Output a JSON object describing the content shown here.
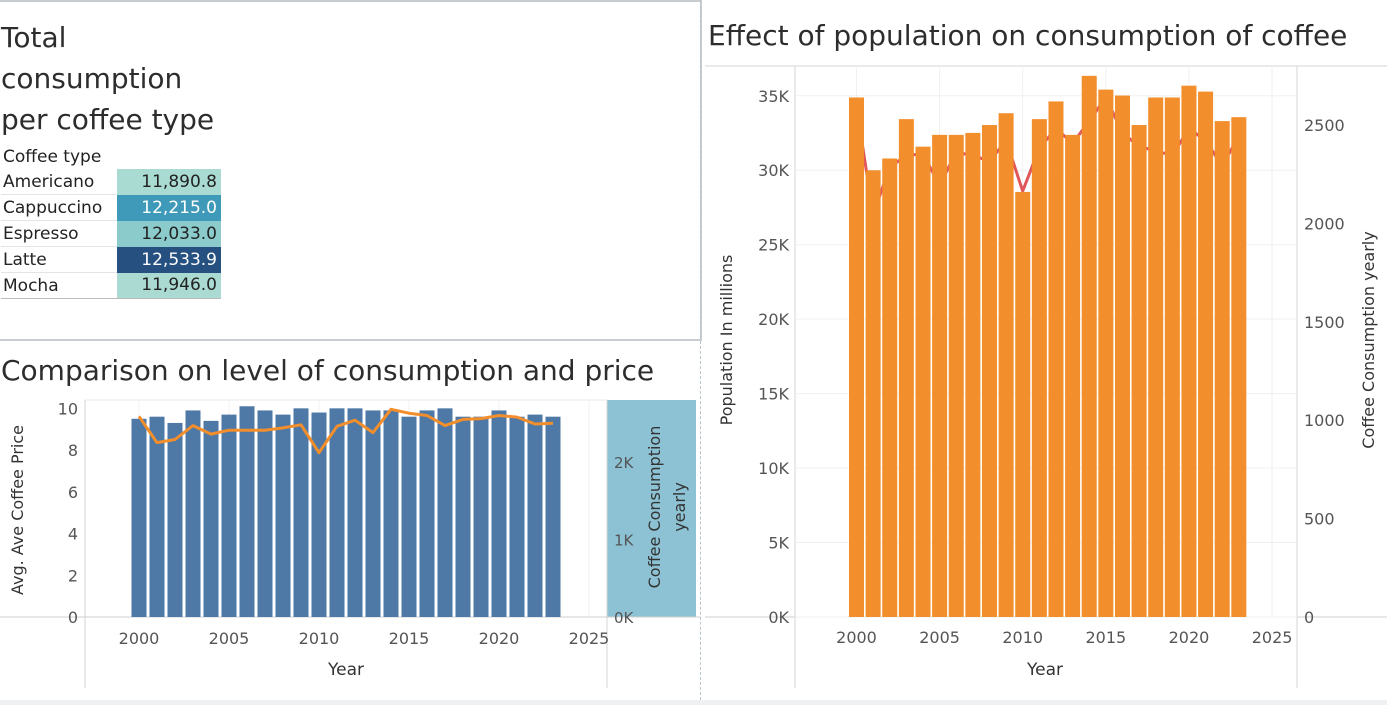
{
  "panel1": {
    "title_lines": [
      "Total",
      "consumption",
      "per coffee type"
    ],
    "header": "Coffee type",
    "rows": [
      {
        "label": "Americano",
        "value": "11,890.8",
        "color": "#a9dbd3",
        "text_color": "#222"
      },
      {
        "label": "Cappuccino",
        "value": "12,215.0",
        "color": "#3e9ab8",
        "text_color": "#ffffff"
      },
      {
        "label": "Espresso",
        "value": "12,033.0",
        "color": "#8ccbcc",
        "text_color": "#222"
      },
      {
        "label": "Latte",
        "value": "12,533.9",
        "color": "#26507f",
        "text_color": "#ffffff"
      },
      {
        "label": "Mocha",
        "value": "11,946.0",
        "color": "#aadad2",
        "text_color": "#222"
      }
    ]
  },
  "panel2": {
    "title": "Comparison on level of consumption and price"
  },
  "panel3": {
    "title": "Effect of population on consumption of coffee"
  },
  "chart_data": [
    {
      "type": "bar",
      "title": "Comparison on level of consumption and price",
      "xlabel": "Year",
      "ylabel": "Avg. Ave Coffee  Price",
      "y2label": [
        "Coffee  Consumption",
        "yearly"
      ],
      "x": [
        2000,
        2001,
        2002,
        2003,
        2004,
        2005,
        2006,
        2007,
        2008,
        2009,
        2010,
        2011,
        2012,
        2013,
        2014,
        2015,
        2016,
        2017,
        2018,
        2019,
        2020,
        2021,
        2022,
        2023
      ],
      "x_ticks": [
        2000,
        2005,
        2010,
        2015,
        2020,
        2025
      ],
      "xlim": [
        1997,
        2026
      ],
      "y_ticks": [
        0,
        2,
        4,
        6,
        8,
        10
      ],
      "ylim": [
        0,
        10.4
      ],
      "y2_ticks": [
        {
          "v": 0,
          "label": "0K"
        },
        {
          "v": 1000,
          "label": "1K"
        },
        {
          "v": 2000,
          "label": "2K"
        }
      ],
      "y2lim": [
        0,
        2800
      ],
      "series": [
        {
          "name": "Avg. Ave Coffee  Price",
          "kind": "bar",
          "color": "#4e79a7",
          "values": [
            9.5,
            9.6,
            9.3,
            9.9,
            9.4,
            9.7,
            10.1,
            9.9,
            9.7,
            10.0,
            9.8,
            10.0,
            10.0,
            9.9,
            9.9,
            9.6,
            9.9,
            10.0,
            9.6,
            9.6,
            9.9,
            9.6,
            9.7,
            9.6
          ]
        },
        {
          "name": "Coffee  Consumption yearly",
          "kind": "line",
          "color": "#f28e2b",
          "values": [
            2590,
            2250,
            2290,
            2470,
            2360,
            2410,
            2410,
            2410,
            2440,
            2480,
            2120,
            2460,
            2540,
            2380,
            2680,
            2630,
            2600,
            2470,
            2550,
            2560,
            2600,
            2580,
            2490,
            2500
          ]
        }
      ]
    },
    {
      "type": "bar",
      "title": "Effect of population on consumption of coffee",
      "xlabel": "Year",
      "ylabel": "Population In millions",
      "y2label": "Coffee  Consumption yearly",
      "x": [
        2000,
        2001,
        2002,
        2003,
        2004,
        2005,
        2006,
        2007,
        2008,
        2009,
        2010,
        2011,
        2012,
        2013,
        2014,
        2015,
        2016,
        2017,
        2018,
        2019,
        2020,
        2021,
        2022,
        2023
      ],
      "x_ticks": [
        2000,
        2005,
        2010,
        2015,
        2020,
        2025
      ],
      "xlim": [
        1996.3,
        2026.5
      ],
      "y_ticks": [
        {
          "v": 0,
          "label": "0K"
        },
        {
          "v": 5000,
          "label": "5K"
        },
        {
          "v": 10000,
          "label": "10K"
        },
        {
          "v": 15000,
          "label": "15K"
        },
        {
          "v": 20000,
          "label": "20K"
        },
        {
          "v": 25000,
          "label": "25K"
        },
        {
          "v": 30000,
          "label": "30K"
        },
        {
          "v": 35000,
          "label": "35K"
        }
      ],
      "ylim": [
        0,
        37000
      ],
      "y2_ticks": [
        0,
        500,
        1000,
        1500,
        2000,
        2500
      ],
      "y2lim": [
        0,
        2800
      ],
      "series": [
        {
          "name": "Population In millions",
          "kind": "line",
          "color": "#e15759",
          "values": [
            34300,
            27000,
            30200,
            31000,
            31100,
            29000,
            31200,
            31000,
            30600,
            32000,
            28600,
            31500,
            32800,
            31800,
            33300,
            34900,
            32500,
            31600,
            31300,
            31000,
            32800,
            32000,
            30300,
            32300
          ]
        },
        {
          "name": "Coffee  Consumption yearly",
          "kind": "bar",
          "color": "#f28e2b",
          "values": [
            2640,
            2270,
            2330,
            2530,
            2390,
            2450,
            2450,
            2460,
            2500,
            2560,
            2160,
            2530,
            2620,
            2450,
            2750,
            2680,
            2650,
            2500,
            2640,
            2640,
            2700,
            2670,
            2520,
            2540
          ]
        }
      ]
    }
  ]
}
